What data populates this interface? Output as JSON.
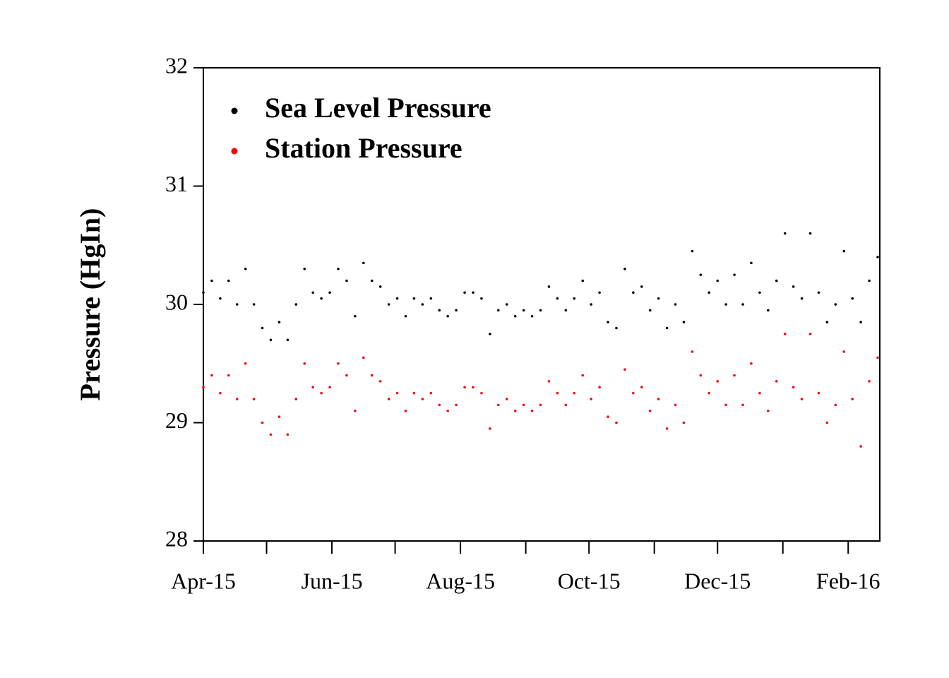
{
  "chart_data": {
    "type": "scatter",
    "ylabel": "Pressure (HgIn)",
    "x": [
      0,
      4,
      8,
      12,
      16,
      20,
      24,
      28,
      32,
      36,
      40,
      44,
      48,
      52,
      56,
      60,
      64,
      68,
      72,
      76,
      80,
      84,
      88,
      92,
      96,
      100,
      104,
      108,
      112,
      116,
      120,
      124,
      128,
      132,
      136,
      140,
      144,
      148,
      152,
      156,
      160,
      164,
      168,
      172,
      176,
      180,
      184,
      188,
      192,
      196,
      200,
      204,
      208,
      212,
      216,
      220,
      224,
      228,
      232,
      236,
      240,
      244,
      248,
      252,
      256,
      260,
      264,
      268,
      272,
      276,
      280,
      284,
      288,
      292,
      296,
      300,
      304,
      308,
      312,
      316,
      320
    ],
    "series": [
      {
        "name": "Sea Level Pressure",
        "color": "#000000",
        "values": [
          30.1,
          30.2,
          30.05,
          30.2,
          30.0,
          30.3,
          30.0,
          29.8,
          29.7,
          29.85,
          29.7,
          30.0,
          30.3,
          30.1,
          30.05,
          30.1,
          30.3,
          30.2,
          29.9,
          30.35,
          30.2,
          30.15,
          30.0,
          30.05,
          29.9,
          30.05,
          30.0,
          30.05,
          29.95,
          29.9,
          29.95,
          30.1,
          30.1,
          30.05,
          29.75,
          29.95,
          30.0,
          29.9,
          29.95,
          29.9,
          29.95,
          30.15,
          30.05,
          29.95,
          30.05,
          30.2,
          30.0,
          30.1,
          29.85,
          29.8,
          30.3,
          30.1,
          30.15,
          29.95,
          30.05,
          29.8,
          30.0,
          29.85,
          30.45,
          30.25,
          30.1,
          30.2,
          30.0,
          30.25,
          30.0,
          30.35,
          30.1,
          29.95,
          30.2,
          30.6,
          30.15,
          30.05,
          30.6,
          30.1,
          29.85,
          30.0,
          30.45,
          30.05,
          29.85,
          30.2,
          30.4
        ]
      },
      {
        "name": "Station Pressure",
        "color": "#ff0000",
        "values": [
          29.3,
          29.4,
          29.25,
          29.4,
          29.2,
          29.5,
          29.2,
          29.0,
          28.9,
          29.05,
          28.9,
          29.2,
          29.5,
          29.3,
          29.25,
          29.3,
          29.5,
          29.4,
          29.1,
          29.55,
          29.4,
          29.35,
          29.2,
          29.25,
          29.1,
          29.25,
          29.2,
          29.25,
          29.15,
          29.1,
          29.15,
          29.3,
          29.3,
          29.25,
          28.95,
          29.15,
          29.2,
          29.1,
          29.15,
          29.1,
          29.15,
          29.35,
          29.25,
          29.15,
          29.25,
          29.4,
          29.2,
          29.3,
          29.05,
          29.0,
          29.45,
          29.25,
          29.3,
          29.1,
          29.2,
          28.95,
          29.15,
          29.0,
          29.6,
          29.4,
          29.25,
          29.35,
          29.15,
          29.4,
          29.15,
          29.5,
          29.25,
          29.1,
          29.35,
          29.75,
          29.3,
          29.2,
          29.75,
          29.25,
          29.0,
          29.15,
          29.6,
          29.2,
          28.8,
          29.35,
          29.55
        ]
      }
    ],
    "xlim": [
      0,
      321
    ],
    "xticks": [
      {
        "value": 0,
        "label": "Apr-15"
      },
      {
        "value": 61,
        "label": "Jun-15"
      },
      {
        "value": 122,
        "label": "Aug-15"
      },
      {
        "value": 183,
        "label": "Oct-15"
      },
      {
        "value": 244,
        "label": "Dec-15"
      },
      {
        "value": 306,
        "label": "Feb-16"
      }
    ],
    "xminorticks": [
      30,
      91,
      153,
      214,
      275
    ],
    "ylim": [
      28,
      32
    ],
    "yticks": [
      28,
      29,
      30,
      31,
      32
    ],
    "legend": "top-left"
  }
}
